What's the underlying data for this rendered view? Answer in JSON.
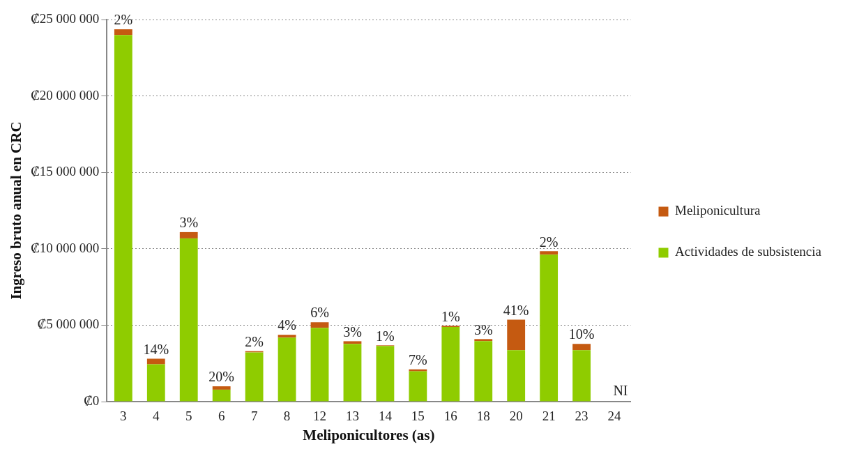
{
  "chart_data": {
    "type": "bar",
    "stacked": true,
    "xlabel": "Meliponicultores (as)",
    "ylabel": "Ingreso bruto anual en CRC",
    "categories": [
      "3",
      "4",
      "5",
      "6",
      "7",
      "8",
      "12",
      "13",
      "14",
      "15",
      "16",
      "18",
      "20",
      "21",
      "23",
      "24"
    ],
    "series": [
      {
        "name": "Actividades de subsistencia",
        "color": "#8fcc00",
        "values": [
          23990000,
          2440000,
          10680000,
          780000,
          3220000,
          4190000,
          4830000,
          3780000,
          3640000,
          1980000,
          4880000,
          3960000,
          3360000,
          9620000,
          3360000,
          null
        ]
      },
      {
        "name": "Meliponicultura",
        "color": "#c55a11",
        "values": [
          370000,
          370000,
          410000,
          220000,
          80000,
          180000,
          360000,
          170000,
          40000,
          130000,
          80000,
          130000,
          2000000,
          220000,
          420000,
          null
        ]
      }
    ],
    "ylim": [
      0,
      25000000
    ],
    "yticks": [
      {
        "value": 0,
        "label": "₡0"
      },
      {
        "value": 5000000,
        "label": "₡5 000 000"
      },
      {
        "value": 10000000,
        "label": "₡10 000 000"
      },
      {
        "value": 15000000,
        "label": "₡15 000 000"
      },
      {
        "value": 20000000,
        "label": "₡20 000 000"
      },
      {
        "value": 25000000,
        "label": "₡25 000 000"
      }
    ],
    "grid": "y",
    "legend": "right",
    "annotations": [
      {
        "text": "2%",
        "x": "3",
        "y": 24360000
      },
      {
        "text": "14%",
        "x": "4",
        "y": 2810000
      },
      {
        "text": "3%",
        "x": "5",
        "y": 11090000
      },
      {
        "text": "20%",
        "x": "6",
        "y": 1000000
      },
      {
        "text": "2%",
        "x": "7",
        "y": 3300000
      },
      {
        "text": "4%",
        "x": "8",
        "y": 4370000
      },
      {
        "text": "6%",
        "x": "12",
        "y": 5190000
      },
      {
        "text": "3%",
        "x": "13",
        "y": 3950000
      },
      {
        "text": "1%",
        "x": "14",
        "y": 3680000
      },
      {
        "text": "7%",
        "x": "15",
        "y": 2110000
      },
      {
        "text": "1%",
        "x": "16",
        "y": 4960000
      },
      {
        "text": "3%",
        "x": "18",
        "y": 4090000
      },
      {
        "text": "41%",
        "x": "20",
        "y": 5360000
      },
      {
        "text": "2%",
        "x": "21",
        "y": 9840000
      },
      {
        "text": "10%",
        "x": "23",
        "y": 3780000
      },
      "NI"
    ]
  }
}
